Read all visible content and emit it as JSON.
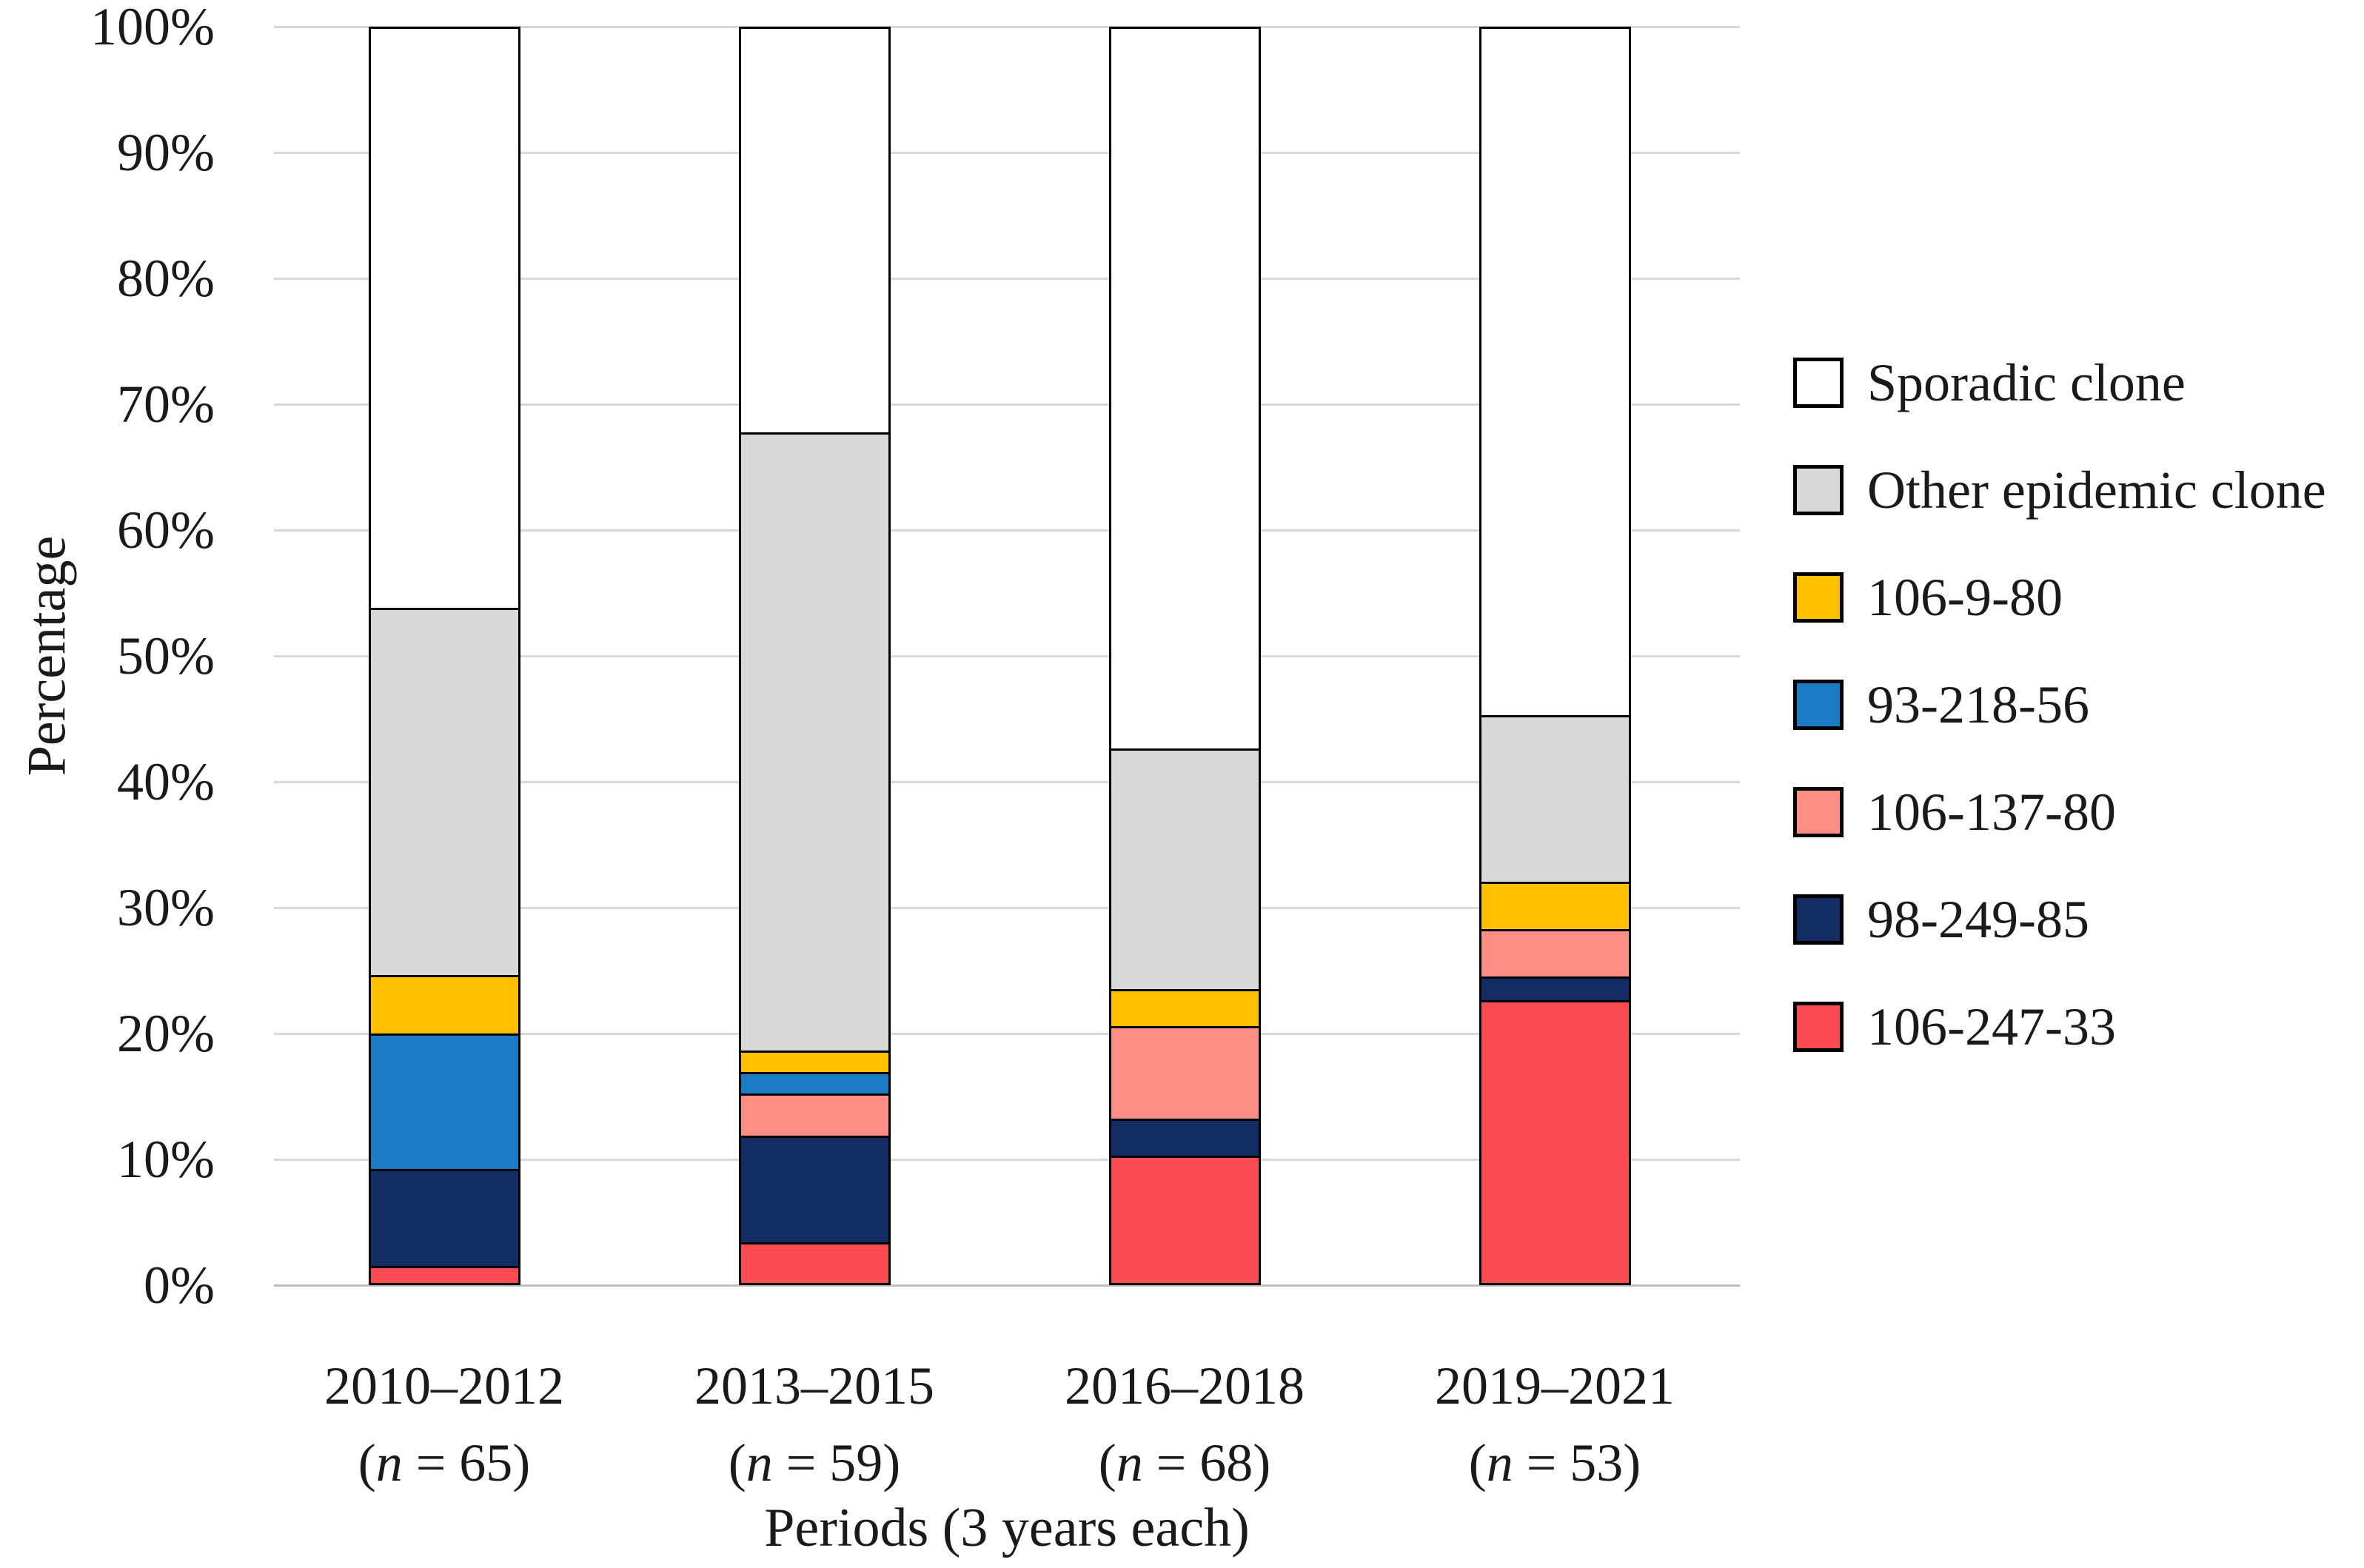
{
  "figure": {
    "y_axis_title": "Percentage",
    "x_axis_title": "Periods (3 years each)",
    "n_open": "(",
    "n_symbol": "n",
    "n_equals": " = ",
    "n_close": ")"
  },
  "chart_data": {
    "type": "bar",
    "stacked": true,
    "units": "percent",
    "title": "",
    "xlabel": "Periods (3 years each)",
    "ylabel": "Percentage",
    "ylim": [
      0,
      100
    ],
    "grid": true,
    "legend_position": "right",
    "yticks": [
      {
        "value": 0,
        "label": "0%"
      },
      {
        "value": 10,
        "label": "10%"
      },
      {
        "value": 20,
        "label": "20%"
      },
      {
        "value": 30,
        "label": "30%"
      },
      {
        "value": 40,
        "label": "40%"
      },
      {
        "value": 50,
        "label": "50%"
      },
      {
        "value": 60,
        "label": "60%"
      },
      {
        "value": 70,
        "label": "70%"
      },
      {
        "value": 80,
        "label": "80%"
      },
      {
        "value": 90,
        "label": "90%"
      },
      {
        "value": 100,
        "label": "100%"
      }
    ],
    "categories": [
      {
        "period": "2010–2012",
        "n": "65"
      },
      {
        "period": "2013–2015",
        "n": "59"
      },
      {
        "period": "2016–2018",
        "n": "68"
      },
      {
        "period": "2019–2021",
        "n": "53"
      }
    ],
    "series_bottom_to_top": [
      {
        "name": "106-247-33",
        "color": "#FB4B52",
        "values_percent": [
          1.54,
          3.39,
          10.29,
          22.64
        ]
      },
      {
        "name": "98-249-85",
        "color": "#132C63",
        "values_percent": [
          7.69,
          8.47,
          2.94,
          1.89
        ]
      },
      {
        "name": "106-137-80",
        "color": "#FC8E85",
        "values_percent": [
          0,
          3.39,
          7.35,
          3.77
        ]
      },
      {
        "name": "93-218-56",
        "color": "#1B7BC4",
        "values_percent": [
          10.77,
          1.69,
          0,
          0
        ]
      },
      {
        "name": "106-9-80",
        "color": "#FFC000",
        "values_percent": [
          4.62,
          1.69,
          2.94,
          3.77
        ]
      },
      {
        "name": "Other epidemic clone",
        "color": "#D9D9D9",
        "values_percent": [
          29.23,
          49.15,
          19.12,
          13.21
        ]
      },
      {
        "name": "Sporadic clone",
        "color": "#FFFFFF",
        "values_percent": [
          46.15,
          32.2,
          57.35,
          54.72
        ]
      }
    ],
    "legend_top_to_bottom": [
      "Sporadic clone",
      "Other epidemic clone",
      "106-9-80",
      "93-218-56",
      "106-137-80",
      "98-249-85",
      "106-247-33"
    ],
    "colors": {
      "bar_border": "#000000",
      "gridline": "#D9D9D9",
      "baseline": "#BFBFBF",
      "text": "#1A1A1A",
      "background": "#FFFFFF"
    }
  }
}
